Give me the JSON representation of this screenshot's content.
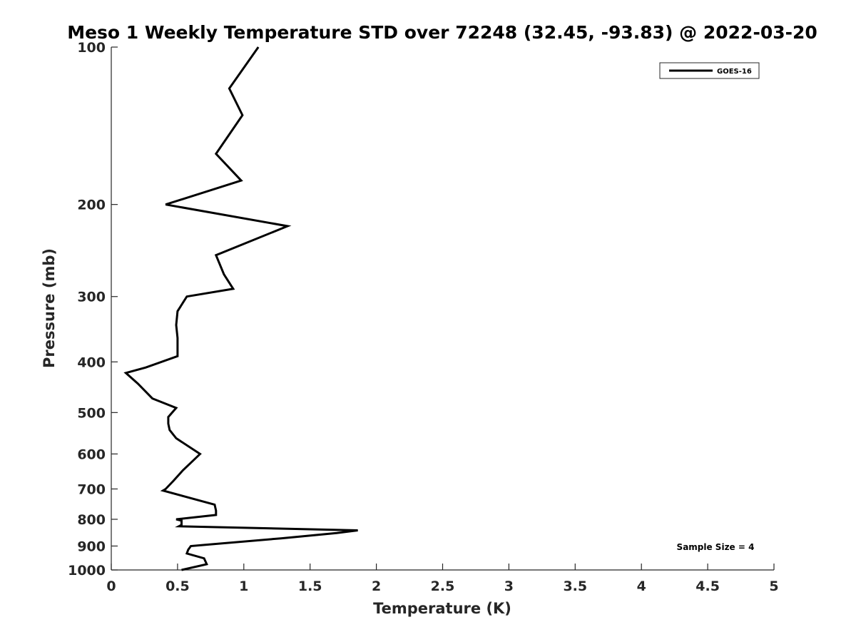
{
  "chart_data": {
    "type": "line",
    "title": "Meso 1 Weekly Temperature STD over 72248 (32.45, -93.83) @ 2022-03-20",
    "xlabel": "Temperature (K)",
    "ylabel": "Pressure (mb)",
    "xlim": [
      0,
      5
    ],
    "ylim": [
      100,
      1000
    ],
    "y_scale": "log",
    "y_reversed": true,
    "grid": false,
    "x_ticks": [
      0,
      0.5,
      1,
      1.5,
      2,
      2.5,
      3,
      3.5,
      4,
      4.5,
      5
    ],
    "x_tick_labels": [
      "0",
      "0.5",
      "1",
      "1.5",
      "2",
      "2.5",
      "3",
      "3.5",
      "4",
      "4.5",
      "5"
    ],
    "y_ticks": [
      100,
      200,
      300,
      400,
      500,
      600,
      700,
      800,
      900,
      1000
    ],
    "y_tick_labels": [
      "100",
      "200",
      "300",
      "400",
      "500",
      "600",
      "700",
      "800",
      "900",
      "1000"
    ],
    "legend_position": "top-right",
    "annotation": "Sample Size = 4",
    "series": [
      {
        "name": "GOES-16",
        "color": "#000000",
        "points": [
          [
            1.11,
            100
          ],
          [
            0.89,
            120
          ],
          [
            0.99,
            135
          ],
          [
            0.79,
            160
          ],
          [
            0.98,
            180
          ],
          [
            0.41,
            200
          ],
          [
            1.33,
            220
          ],
          [
            0.79,
            250
          ],
          [
            0.85,
            272
          ],
          [
            0.92,
            290
          ],
          [
            0.57,
            300
          ],
          [
            0.5,
            320
          ],
          [
            0.49,
            340
          ],
          [
            0.5,
            360
          ],
          [
            0.5,
            390
          ],
          [
            0.26,
            410
          ],
          [
            0.11,
            420
          ],
          [
            0.2,
            440
          ],
          [
            0.31,
            470
          ],
          [
            0.49,
            490
          ],
          [
            0.43,
            510
          ],
          [
            0.43,
            525
          ],
          [
            0.44,
            540
          ],
          [
            0.49,
            560
          ],
          [
            0.67,
            600
          ],
          [
            0.54,
            645
          ],
          [
            0.47,
            675
          ],
          [
            0.41,
            700
          ],
          [
            0.39,
            705
          ],
          [
            0.78,
            750
          ],
          [
            0.79,
            770
          ],
          [
            0.79,
            785
          ],
          [
            0.49,
            800
          ],
          [
            0.53,
            805
          ],
          [
            0.53,
            820
          ],
          [
            0.51,
            825
          ],
          [
            1.86,
            840
          ],
          [
            1.7,
            850
          ],
          [
            1.28,
            870
          ],
          [
            0.6,
            900
          ],
          [
            0.58,
            915
          ],
          [
            0.57,
            930
          ],
          [
            0.7,
            950
          ],
          [
            0.72,
            975
          ],
          [
            0.53,
            1000
          ]
        ]
      }
    ]
  }
}
